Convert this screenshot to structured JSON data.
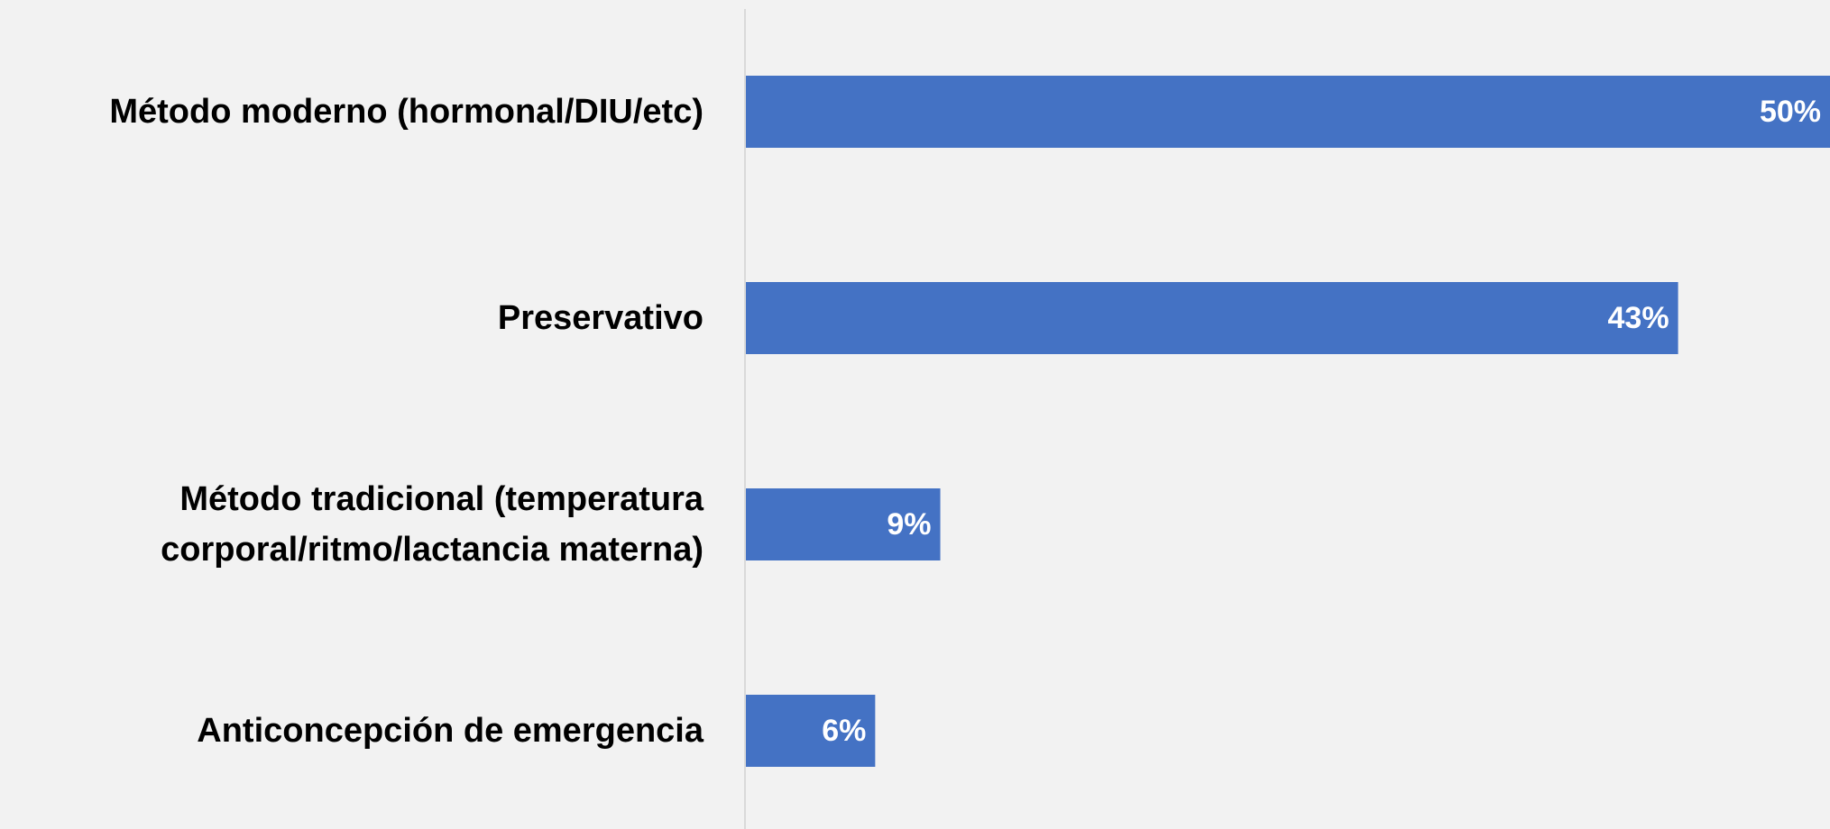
{
  "chart_data": {
    "type": "hbar",
    "categories": [
      "Método moderno (hormonal/DIU/etc)",
      "Preservativo",
      "Método tradicional (temperatura corporal/ritmo/lactancia materna)",
      "Anticoncepción de emergencia"
    ],
    "values": [
      50,
      43,
      9,
      6
    ],
    "value_labels": [
      "50%",
      "43%",
      "9%",
      "6%"
    ],
    "color": "#4472c4",
    "xlim": [
      0,
      50
    ]
  }
}
